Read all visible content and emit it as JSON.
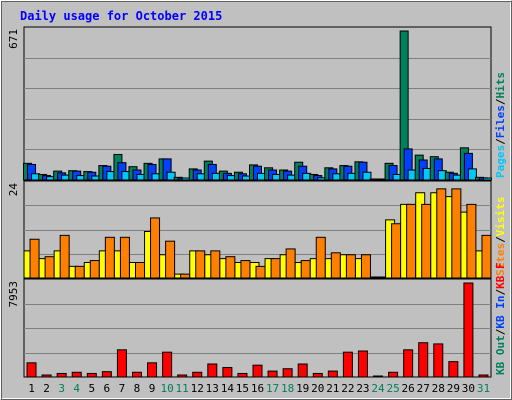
{
  "window": {
    "title": "Daily usage for October 2015"
  },
  "colors": {
    "background": "#c0c0c0",
    "outer": "#ececec",
    "grid": "#808080",
    "hits": "#00805c",
    "files": "#0040ff",
    "pages": "#00c8f8",
    "visits": "#ffff00",
    "sites": "#ff8000",
    "kb": "#ff0000",
    "weekday": "#000000",
    "weekend": "#00805c"
  },
  "chart_data": [
    {
      "type": "bar",
      "title": "Daily usage for October 2015",
      "ymax_label": "671",
      "ylim": [
        0,
        671
      ],
      "categories": [
        "1",
        "2",
        "3",
        "4",
        "5",
        "6",
        "7",
        "8",
        "9",
        "10",
        "11",
        "12",
        "13",
        "14",
        "15",
        "16",
        "17",
        "18",
        "19",
        "20",
        "21",
        "22",
        "23",
        "24",
        "25",
        "26",
        "27",
        "28",
        "29",
        "30",
        "31"
      ],
      "weekend_days": [
        "3",
        "4",
        "10",
        "11",
        "17",
        "18",
        "24",
        "25",
        "31"
      ],
      "legend": [
        {
          "text": "Hits",
          "color": "#00805c"
        },
        {
          "text": "Files",
          "color": "#0040ff"
        },
        {
          "text": "Pages",
          "color": "#00c8f8"
        }
      ],
      "legend_sep": "/",
      "series": [
        {
          "name": "Hits",
          "color": "#00805c",
          "values": [
            75,
            25,
            40,
            42,
            38,
            65,
            115,
            60,
            75,
            95,
            12,
            50,
            85,
            40,
            35,
            68,
            55,
            45,
            80,
            25,
            55,
            65,
            82,
            0,
            75,
            671,
            112,
            105,
            35,
            145,
            12
          ]
        },
        {
          "name": "Files",
          "color": "#0040ff",
          "values": [
            70,
            20,
            32,
            40,
            35,
            62,
            78,
            45,
            70,
            95,
            8,
            45,
            70,
            30,
            28,
            62,
            45,
            40,
            62,
            20,
            50,
            62,
            80,
            0,
            65,
            140,
            90,
            95,
            30,
            120,
            10
          ]
        },
        {
          "name": "Pages",
          "color": "#00c8f8",
          "values": [
            28,
            15,
            22,
            20,
            18,
            38,
            38,
            25,
            28,
            35,
            5,
            28,
            30,
            20,
            18,
            30,
            25,
            22,
            30,
            10,
            28,
            30,
            35,
            0,
            25,
            45,
            52,
            42,
            22,
            50,
            5
          ]
        }
      ]
    },
    {
      "type": "bar",
      "ymax_label": "24",
      "ylim": [
        0,
        24
      ],
      "categories": [
        "1",
        "2",
        "3",
        "4",
        "5",
        "6",
        "7",
        "8",
        "9",
        "10",
        "11",
        "12",
        "13",
        "14",
        "15",
        "16",
        "17",
        "18",
        "19",
        "20",
        "21",
        "22",
        "23",
        "24",
        "25",
        "26",
        "27",
        "28",
        "29",
        "30",
        "31"
      ],
      "legend": [
        {
          "text": "Visits",
          "color": "#ffff00"
        },
        {
          "text": "Sites",
          "color": "#ff8000"
        }
      ],
      "legend_sep": "/",
      "series": [
        {
          "name": "Visits",
          "color": "#ffff00",
          "values": [
            7,
            5,
            7,
            3,
            4,
            7,
            7,
            4,
            12,
            6,
            1,
            7,
            6,
            5,
            4,
            4,
            5,
            6,
            4,
            5,
            5,
            6,
            5,
            0,
            15,
            19,
            22,
            22,
            21,
            17,
            7
          ]
        },
        {
          "name": "Sites",
          "color": "#ff8000",
          "values": [
            10,
            5.5,
            11,
            3,
            4.5,
            10.5,
            10.5,
            4,
            15.5,
            9.5,
            1,
            7,
            7,
            5.5,
            4.5,
            3,
            5,
            7.5,
            4.5,
            10.5,
            6.5,
            6,
            6,
            0,
            14,
            19,
            19,
            23,
            23,
            19,
            11
          ]
        }
      ]
    },
    {
      "type": "bar",
      "ymax_label": "7953",
      "ylim": [
        0,
        7953
      ],
      "categories": [
        "1",
        "2",
        "3",
        "4",
        "5",
        "6",
        "7",
        "8",
        "9",
        "10",
        "11",
        "12",
        "13",
        "14",
        "15",
        "16",
        "17",
        "18",
        "19",
        "20",
        "21",
        "22",
        "23",
        "24",
        "25",
        "26",
        "27",
        "28",
        "29",
        "30",
        "31"
      ],
      "legend": [
        {
          "text": "KB F",
          "color": "#ff0000"
        },
        {
          "text": "KB In",
          "color": "#0040ff"
        },
        {
          "text": "KB Out",
          "color": "#00805c"
        }
      ],
      "legend_sep": "/",
      "series": [
        {
          "name": "KB F",
          "color": "#ff0000",
          "values": [
            1200,
            150,
            300,
            400,
            300,
            450,
            2300,
            400,
            1200,
            2100,
            150,
            400,
            1100,
            800,
            300,
            1000,
            500,
            700,
            1100,
            300,
            500,
            2100,
            2200,
            0,
            400,
            2300,
            2900,
            2800,
            1300,
            7953,
            150
          ]
        }
      ]
    }
  ]
}
